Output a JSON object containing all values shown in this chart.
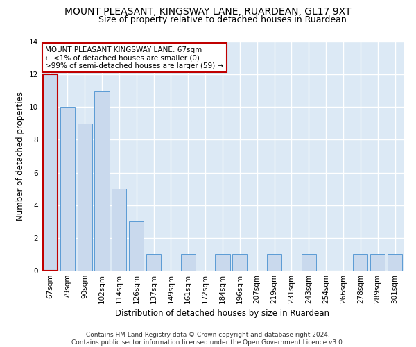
{
  "title": "MOUNT PLEASANT, KINGSWAY LANE, RUARDEAN, GL17 9XT",
  "subtitle": "Size of property relative to detached houses in Ruardean",
  "xlabel": "Distribution of detached houses by size in Ruardean",
  "ylabel": "Number of detached properties",
  "categories": [
    "67sqm",
    "79sqm",
    "90sqm",
    "102sqm",
    "114sqm",
    "126sqm",
    "137sqm",
    "149sqm",
    "161sqm",
    "172sqm",
    "184sqm",
    "196sqm",
    "207sqm",
    "219sqm",
    "231sqm",
    "243sqm",
    "254sqm",
    "266sqm",
    "278sqm",
    "289sqm",
    "301sqm"
  ],
  "values": [
    12,
    10,
    9,
    11,
    5,
    3,
    1,
    0,
    1,
    0,
    1,
    1,
    0,
    1,
    0,
    1,
    0,
    0,
    1,
    1,
    1
  ],
  "bar_color": "#c9d9ed",
  "bar_edge_color": "#5b9bd5",
  "highlight_index": 0,
  "highlight_edge_color": "#c00000",
  "annotation_title": "MOUNT PLEASANT KINGSWAY LANE: 67sqm",
  "annotation_line1": "← <1% of detached houses are smaller (0)",
  "annotation_line2": ">99% of semi-detached houses are larger (59) →",
  "annotation_box_edge": "#c00000",
  "ylim": [
    0,
    14
  ],
  "yticks": [
    0,
    2,
    4,
    6,
    8,
    10,
    12,
    14
  ],
  "footer_line1": "Contains HM Land Registry data © Crown copyright and database right 2024.",
  "footer_line2": "Contains public sector information licensed under the Open Government Licence v3.0.",
  "fig_background": "#ffffff",
  "plot_background": "#dce9f5",
  "grid_color": "#ffffff",
  "title_fontsize": 10,
  "subtitle_fontsize": 9,
  "label_fontsize": 8.5,
  "tick_fontsize": 7.5,
  "annotation_fontsize": 7.5,
  "footer_fontsize": 6.5
}
